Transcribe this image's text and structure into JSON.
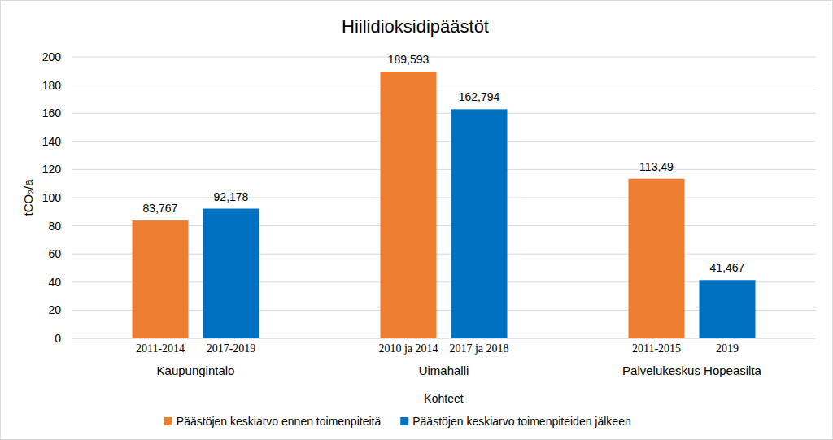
{
  "chart_data": {
    "type": "bar",
    "title": "Hiilidioksidipäästöt",
    "x_label": "Kohteet",
    "y_label": "tCO₂/a",
    "categories": [
      "Kaupungintalo",
      "Uimahalli",
      "Palvelukeskus Hopeasilta"
    ],
    "series": [
      {
        "name": "Päästöjen keskiarvo ennen toimenpiteitä",
        "color": "#ed7d31",
        "values": [
          83.767,
          189.593,
          113.49
        ],
        "value_labels": [
          "83,767",
          "189,593",
          "113,49"
        ],
        "period_labels": [
          "2011-2014",
          "2010 ja 2014",
          "2011-2015"
        ]
      },
      {
        "name": "Päästöjen keskiarvo toimenpiteiden jälkeen",
        "color": "#0070c0",
        "values": [
          92.178,
          162.794,
          41.467
        ],
        "value_labels": [
          "92,178",
          "162,794",
          "41,467"
        ],
        "period_labels": [
          "2017-2019",
          "2017 ja 2018",
          "2019"
        ]
      }
    ],
    "ylim": [
      0,
      200
    ],
    "yticks": [
      0,
      20,
      40,
      60,
      80,
      100,
      120,
      140,
      160,
      180,
      200
    ],
    "grid": true,
    "legend": "bottom",
    "data_labels": true
  }
}
